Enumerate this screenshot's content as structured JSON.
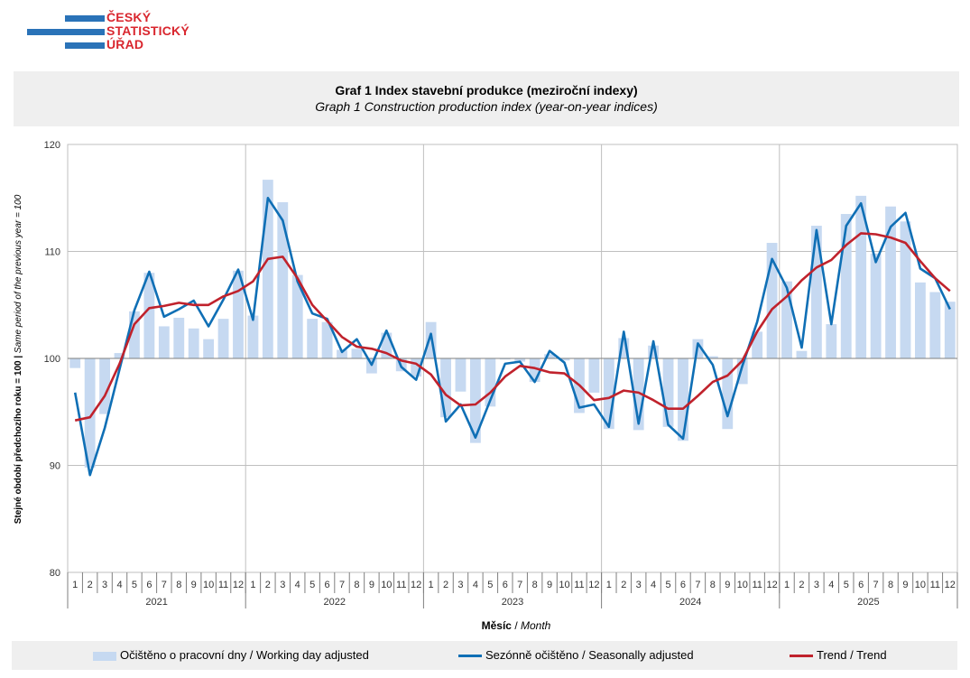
{
  "logo": {
    "line1": "ČESKÝ",
    "line2": "STATISTICKÝ",
    "line3": "ÚŘAD"
  },
  "title": {
    "main": "Graf 1 Index stavební produkce (meziroční indexy)",
    "sub": "Graph 1 Construction production index (year-on-year indices)"
  },
  "legend": {
    "bar": "Očištěno o pracovní dny / Working day adjusted",
    "seasonal": "Sezónně očištěno / Seasonally adjusted",
    "trend": "Trend / Trend"
  },
  "colors": {
    "bar": "#c6d9f1",
    "seasonal": "#0f6fb5",
    "trend": "#c0222c",
    "grid": "#bfbfbf",
    "zero": "#7f7f7f"
  },
  "chart_data": {
    "type": "bar+line",
    "xlabel": "Měsíc",
    "xlabel_en": "Month",
    "ylabel": "Stejné období předchozího roku = 100",
    "ylabel_en": "Same period of the previous year = 100",
    "ylabel_sep": " | ",
    "ylim": [
      80,
      120
    ],
    "yticks": [
      80,
      90,
      100,
      110,
      120
    ],
    "baseline": 100,
    "years": [
      "2021",
      "2022",
      "2023",
      "2024",
      "2025"
    ],
    "months": [
      "1",
      "2",
      "3",
      "4",
      "5",
      "6",
      "7",
      "8",
      "9",
      "10",
      "11",
      "12"
    ],
    "series": [
      {
        "name": "Očištěno o pracovní dny / Working day adjusted",
        "type": "bar",
        "values": [
          99.1,
          89.8,
          94.8,
          100.5,
          104.4,
          108.0,
          103.0,
          103.8,
          102.8,
          101.8,
          103.7,
          108.2,
          104.0,
          116.7,
          114.6,
          107.8,
          103.7,
          103.4,
          100.8,
          100.9,
          98.6,
          102.4,
          98.8,
          98.3,
          103.4,
          94.5,
          96.9,
          92.1,
          95.5,
          99.9,
          99.7,
          97.8,
          100.4,
          99.8,
          94.9,
          96.8,
          93.4,
          101.9,
          93.3,
          101.2,
          93.6,
          92.3,
          101.8,
          100.2,
          93.4,
          97.6,
          102.5,
          110.8,
          107.2,
          100.7,
          112.4,
          103.2,
          113.5,
          115.2,
          109.8,
          114.2,
          112.8,
          107.1,
          106.2,
          105.3
        ]
      },
      {
        "name": "Sezónně očištěno / Seasonally adjusted",
        "type": "line",
        "values": [
          96.8,
          89.1,
          93.5,
          99.0,
          104.5,
          108.1,
          103.9,
          104.6,
          105.4,
          103.0,
          105.5,
          108.3,
          103.6,
          115.0,
          112.9,
          107.2,
          104.2,
          103.7,
          100.6,
          101.8,
          99.4,
          102.6,
          99.2,
          98.0,
          102.3,
          94.1,
          95.7,
          92.6,
          96.1,
          99.5,
          99.7,
          97.8,
          100.7,
          99.6,
          95.4,
          95.7,
          93.6,
          102.5,
          93.9,
          101.6,
          93.8,
          92.5,
          101.4,
          99.4,
          94.6,
          99.3,
          103.4,
          109.3,
          106.6,
          101.0,
          112.0,
          103.2,
          112.4,
          114.5,
          109.0,
          112.3,
          113.6,
          108.4,
          107.5,
          104.6
        ]
      },
      {
        "name": "Trend / Trend",
        "type": "line",
        "values": [
          94.2,
          94.5,
          96.5,
          99.5,
          103.2,
          104.7,
          104.9,
          105.2,
          105.0,
          105.0,
          105.8,
          106.3,
          107.2,
          109.3,
          109.5,
          107.5,
          105.0,
          103.5,
          102.0,
          101.1,
          100.9,
          100.5,
          99.8,
          99.5,
          98.5,
          96.6,
          95.6,
          95.7,
          96.8,
          98.3,
          99.3,
          99.1,
          98.7,
          98.6,
          97.5,
          96.1,
          96.3,
          97.0,
          96.8,
          96.1,
          95.3,
          95.3,
          96.5,
          97.8,
          98.4,
          99.8,
          102.5,
          104.6,
          105.8,
          107.3,
          108.5,
          109.2,
          110.6,
          111.7,
          111.6,
          111.3,
          110.8,
          109.1,
          107.5,
          106.3
        ]
      }
    ]
  }
}
